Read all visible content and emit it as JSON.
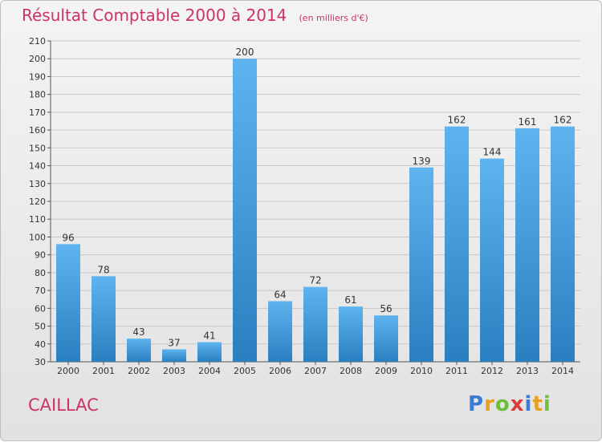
{
  "header": {
    "title": "Résultat Comptable 2000 à 2014",
    "unit": "(en milliers d'€)"
  },
  "footer": {
    "town": "CAILLAC",
    "logo": {
      "letters": [
        "P",
        "r",
        "o",
        "x",
        "i",
        "t",
        "i"
      ],
      "colors": [
        "#3a7bd5",
        "#e8a020",
        "#6fbf3a",
        "#d93c3c",
        "#3a7bd5",
        "#e8a020",
        "#6fbf3a"
      ]
    }
  },
  "colors": {
    "bar_top": "#5eb4ef",
    "bar_bottom": "#2a7fc0",
    "grid": "#c9c9c9",
    "text": "#333333",
    "title": "#cc3366"
  },
  "chart_data": {
    "type": "bar",
    "title": "Résultat Comptable 2000 à 2014",
    "xlabel": "",
    "ylabel": "",
    "categories": [
      "2000",
      "2001",
      "2002",
      "2003",
      "2004",
      "2005",
      "2006",
      "2007",
      "2008",
      "2009",
      "2010",
      "2011",
      "2012",
      "2013",
      "2014"
    ],
    "values": [
      96,
      78,
      43,
      37,
      41,
      200,
      64,
      72,
      61,
      56,
      139,
      162,
      144,
      161,
      162
    ],
    "ylim": [
      30,
      210
    ],
    "yticks": [
      30,
      40,
      50,
      60,
      70,
      80,
      90,
      100,
      110,
      120,
      130,
      140,
      150,
      160,
      170,
      180,
      190,
      200,
      210
    ],
    "grid": true
  }
}
